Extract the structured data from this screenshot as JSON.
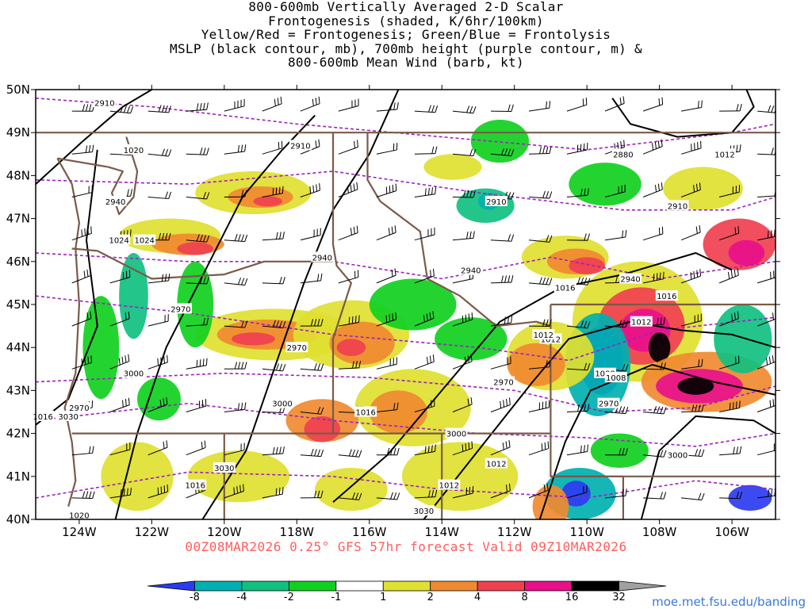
{
  "title": {
    "lines": [
      "800-600mb Vertically Averaged 2-D Scalar",
      "Frontogenesis (shaded, K/6hr/100km)",
      "Yellow/Red = Frontogenesis;  Green/Blue = Frontolysis",
      "MSLP (black contour, mb), 700mb height (purple contour, m) &",
      "800-600mb Mean Wind (barb, kt)"
    ]
  },
  "map": {
    "lat_labels": [
      "50N",
      "49N",
      "48N",
      "47N",
      "46N",
      "45N",
      "44N",
      "43N",
      "42N",
      "41N",
      "40N"
    ],
    "lon_labels": [
      "124W",
      "122W",
      "120W",
      "118W",
      "116W",
      "114W",
      "112W",
      "110W",
      "108W",
      "106W"
    ],
    "lat_range": [
      40,
      50
    ],
    "lon_range": [
      -125.2,
      -104.8
    ],
    "contour_labels": {
      "mslp": [
        "1020",
        "1024",
        "1020",
        "1016",
        "1012",
        "1016",
        "1012",
        "1016",
        "1012",
        "1008",
        "1012",
        "1016",
        "1012",
        "1008",
        "1024",
        "1016",
        "1012",
        "1020"
      ],
      "height": [
        "2910",
        "2910",
        "2940",
        "2910",
        "2880",
        "2910",
        "2940",
        "2970",
        "2940",
        "2940",
        "2970",
        "2970",
        "3000",
        "3000",
        "2970",
        "3030",
        "3000",
        "3030",
        "3000",
        "2970",
        "3030"
      ]
    },
    "colors": {
      "mslp_contour": "#000000",
      "height_contour": "#a020c0",
      "borders": "#7a5a48",
      "barbs": "#000000"
    }
  },
  "footer": {
    "run_text": "00Z08MAR2026 0.25° GFS 57hr forecast Valid 09Z10MAR2026",
    "url": "moe.met.fsu.edu/banding"
  },
  "colorbar": {
    "tick_labels": [
      "-8",
      "-4",
      "-2",
      "-1",
      "1",
      "2",
      "4",
      "8",
      "16",
      "32"
    ],
    "colors": [
      "#2b3cf0",
      "#00b0b0",
      "#10c080",
      "#10d020",
      "#ffffff",
      "#e0e030",
      "#f08a30",
      "#f04050",
      "#e8108a",
      "#000000",
      "#a0a0a0"
    ]
  }
}
